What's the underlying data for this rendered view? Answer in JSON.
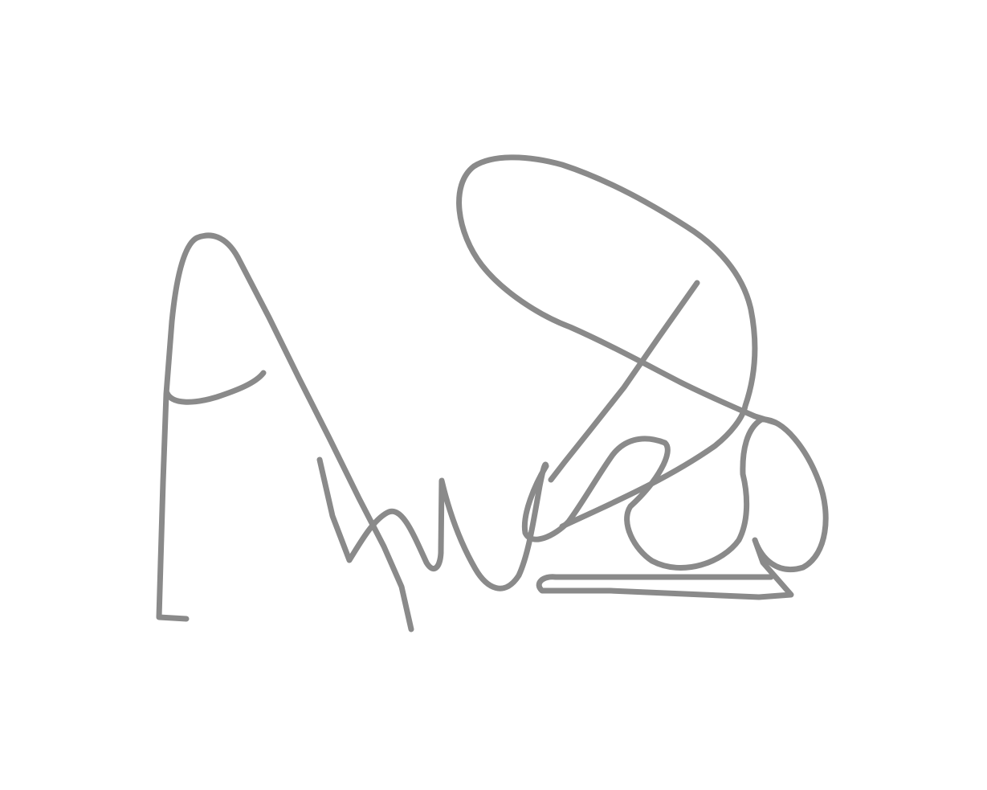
{
  "image": {
    "kind": "handwritten-signature",
    "background_color": "#ffffff",
    "ink_color": "#8a8a8a"
  }
}
